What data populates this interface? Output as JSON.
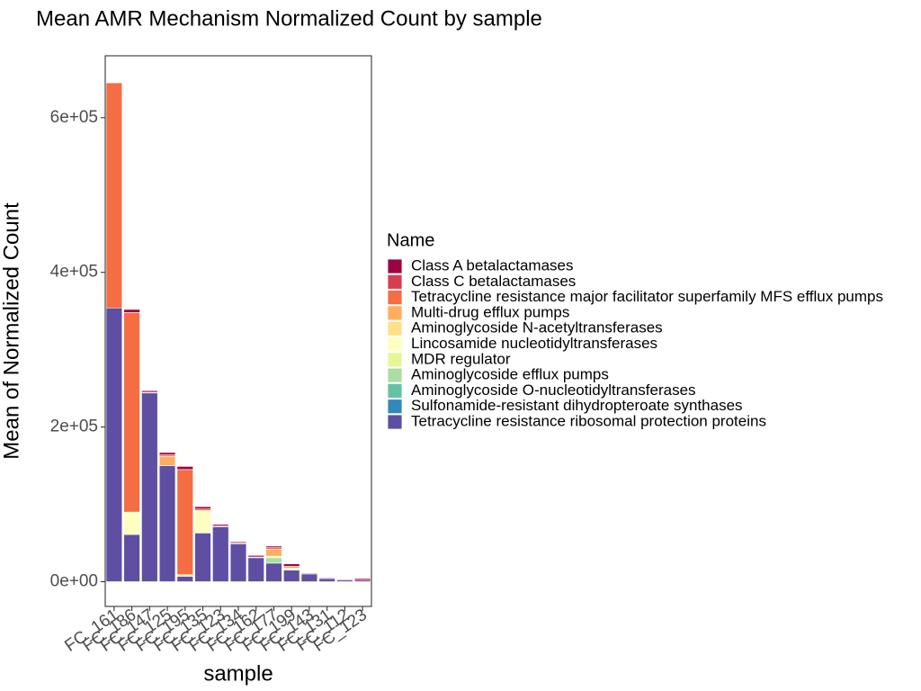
{
  "chart_data": {
    "type": "bar",
    "stacked": true,
    "title": "Mean AMR Mechanism Normalized Count by sample",
    "xlabel": "sample",
    "ylabel": "Mean of Normalized Count",
    "ylim": [
      -32000,
      680000
    ],
    "yticks": [
      0,
      200000,
      400000,
      600000
    ],
    "ytick_labels": [
      "0e+00",
      "2e+05",
      "4e+05",
      "6e+05"
    ],
    "legend_title": "Name",
    "legend_position": "right",
    "grid": false,
    "categories": [
      "FC_161",
      "FC_186",
      "FC_147",
      "FC_125",
      "FC_195",
      "FC_135",
      "FC_123",
      "FC_134",
      "FC_162",
      "FC_177",
      "FC_199",
      "FC_143",
      "FC_131",
      "FC_112",
      "FC_123"
    ],
    "series": [
      {
        "name": "Tetracycline resistance ribosomal protection proteins",
        "color": "#5e4fa2",
        "values": [
          354000,
          61000,
          244000,
          150000,
          7000,
          63000,
          71000,
          49000,
          31000,
          24000,
          15000,
          10000,
          4000,
          2000,
          2000
        ]
      },
      {
        "name": "Sulfonamide-resistant dihydropteroate synthases",
        "color": "#3288bd",
        "values": [
          0,
          0,
          0,
          0,
          0,
          0,
          0,
          0,
          0,
          0,
          0,
          0,
          0,
          0,
          0
        ]
      },
      {
        "name": "Aminoglycoside O-nucleotidyltransferases",
        "color": "#66c2a5",
        "values": [
          0,
          0,
          0,
          0,
          0,
          0,
          0,
          0,
          0,
          0,
          0,
          0,
          0,
          0,
          0
        ]
      },
      {
        "name": "Aminoglycoside efflux pumps",
        "color": "#abdda4",
        "values": [
          0,
          0,
          0,
          0,
          0,
          0,
          0,
          0,
          0,
          7000,
          0,
          0,
          0,
          0,
          0
        ]
      },
      {
        "name": "MDR regulator",
        "color": "#e6f598",
        "values": [
          0,
          0,
          0,
          0,
          2000,
          0,
          0,
          0,
          0,
          2000,
          0,
          0,
          0,
          0,
          0
        ]
      },
      {
        "name": "Lincosamide nucleotidyltransferases",
        "color": "#ffffbf",
        "values": [
          0,
          29000,
          0,
          0,
          0,
          29000,
          0,
          0,
          0,
          0,
          3000,
          0,
          0,
          0,
          0
        ]
      },
      {
        "name": "Aminoglycoside N-acetyltransferases",
        "color": "#fee08b",
        "values": [
          0,
          0,
          0,
          0,
          0,
          0,
          0,
          0,
          0,
          0,
          0,
          0,
          0,
          0,
          0
        ]
      },
      {
        "name": "Multi-drug efflux pumps",
        "color": "#fdae61",
        "values": [
          0,
          0,
          0,
          12000,
          0,
          0,
          0,
          0,
          0,
          9000,
          0,
          0,
          0,
          0,
          0
        ]
      },
      {
        "name": "Tetracycline resistance major facilitator superfamily MFS efflux pumps",
        "color": "#f46d43",
        "values": [
          291000,
          258000,
          1000,
          2000,
          136000,
          2000,
          1000,
          1000,
          1000,
          2000,
          2000,
          0,
          0,
          0,
          0
        ]
      },
      {
        "name": "Class C betalactamases",
        "color": "#d53e4f",
        "values": [
          0,
          0,
          0,
          0,
          0,
          0,
          0,
          0,
          0,
          0,
          0,
          0,
          0,
          0,
          0
        ]
      },
      {
        "name": "Class A betalactamases",
        "color": "#9e0142",
        "values": [
          0,
          4000,
          2000,
          3000,
          4000,
          3000,
          2000,
          1500,
          2000,
          2000,
          3000,
          1000,
          1000,
          1000,
          2000
        ]
      }
    ],
    "legend_order": [
      "Class A betalactamases",
      "Class C betalactamases",
      "Tetracycline resistance major facilitator superfamily MFS efflux pumps",
      "Multi-drug efflux pumps",
      "Aminoglycoside N-acetyltransferases",
      "Lincosamide nucleotidyltransferases",
      "MDR regulator",
      "Aminoglycoside efflux pumps",
      "Aminoglycoside O-nucleotidyltransferases",
      "Sulfonamide-resistant dihydropteroate synthases",
      "Tetracycline resistance ribosomal protection proteins"
    ]
  }
}
